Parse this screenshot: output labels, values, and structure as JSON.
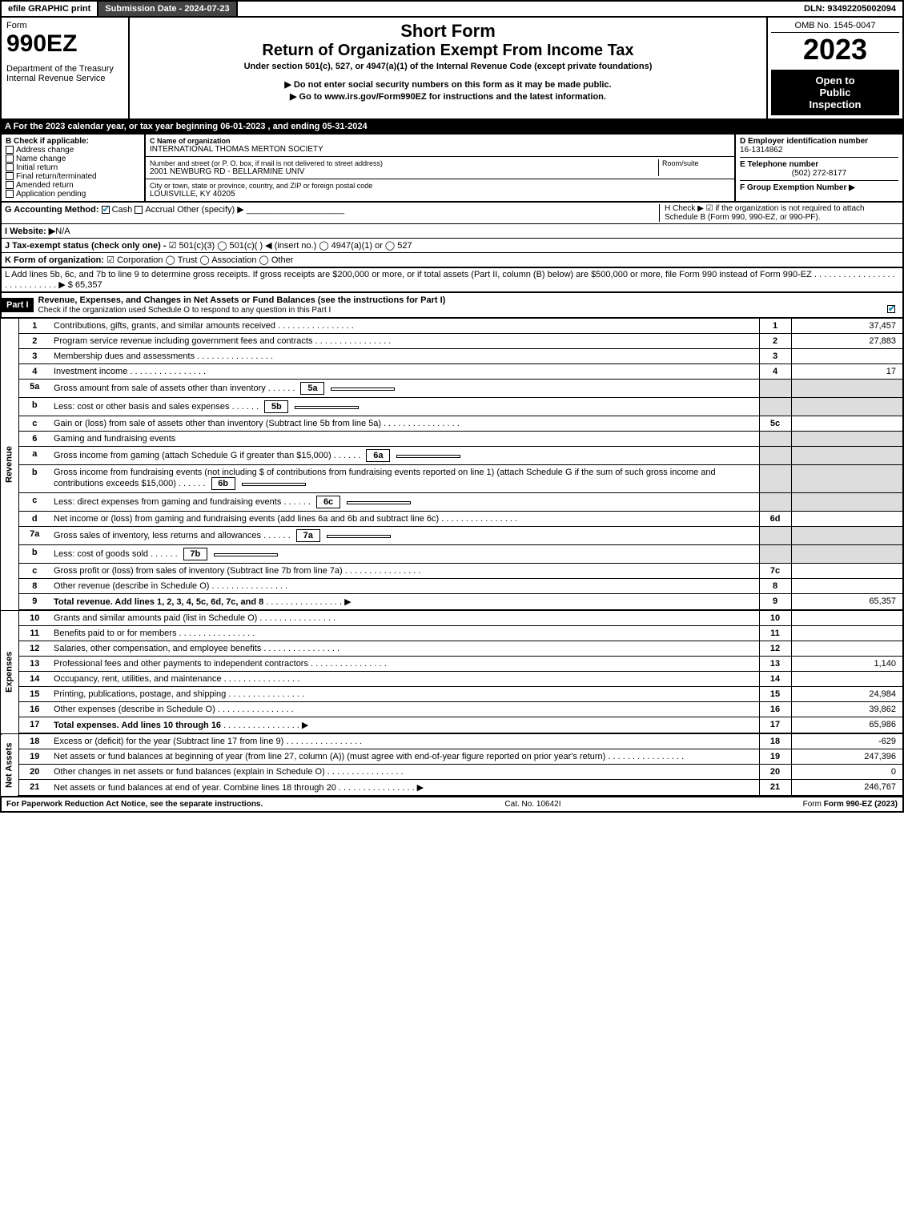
{
  "topbar": {
    "efile": "efile GRAPHIC print",
    "submission": "Submission Date - 2024-07-23",
    "dln": "DLN: 93492205002094"
  },
  "header": {
    "form_word": "Form",
    "form_no": "990EZ",
    "dept1": "Department of the Treasury",
    "dept2": "Internal Revenue Service",
    "title1": "Short Form",
    "title2": "Return of Organization Exempt From Income Tax",
    "subtitle": "Under section 501(c), 527, or 4947(a)(1) of the Internal Revenue Code (except private foundations)",
    "note1": "▶ Do not enter social security numbers on this form as it may be made public.",
    "note2": "▶ Go to www.irs.gov/Form990EZ for instructions and the latest information.",
    "omb": "OMB No. 1545-0047",
    "year": "2023",
    "open1": "Open to",
    "open2": "Public",
    "open3": "Inspection"
  },
  "line_a": "A  For the 2023 calendar year, or tax year beginning 06-01-2023 , and ending 05-31-2024",
  "b": {
    "label": "B  Check if applicable:",
    "opts": [
      "Address change",
      "Name change",
      "Initial return",
      "Final return/terminated",
      "Amended return",
      "Application pending"
    ]
  },
  "c": {
    "name_label": "C Name of organization",
    "name": "INTERNATIONAL THOMAS MERTON SOCIETY",
    "street_label": "Number and street (or P. O. box, if mail is not delivered to street address)",
    "room_label": "Room/suite",
    "street": "2001 NEWBURG RD - BELLARMINE UNIV",
    "city_label": "City or town, state or province, country, and ZIP or foreign postal code",
    "city": "LOUISVILLE, KY  40205"
  },
  "d": {
    "label": "D Employer identification number",
    "ein": "16-1314862",
    "e_label": "E Telephone number",
    "phone": "(502) 272-8177",
    "f_label": "F Group Exemption Number  ▶"
  },
  "g": {
    "label": "G Accounting Method:",
    "cash": "Cash",
    "accrual": "Accrual",
    "other": "Other (specify) ▶"
  },
  "h": {
    "text": "H  Check ▶ ☑ if the organization is not required to attach Schedule B (Form 990, 990-EZ, or 990-PF)."
  },
  "i": {
    "label": "I Website: ▶",
    "val": "N/A"
  },
  "j": {
    "label": "J Tax-exempt status (check only one) -",
    "opts": "☑ 501(c)(3)  ◯ 501(c)(  ) ◀ (insert no.)  ◯ 4947(a)(1) or  ◯ 527"
  },
  "k": {
    "label": "K Form of organization:",
    "opts": "☑ Corporation  ◯ Trust  ◯ Association  ◯ Other"
  },
  "l": {
    "text": "L Add lines 5b, 6c, and 7b to line 9 to determine gross receipts. If gross receipts are $200,000 or more, or if total assets (Part II, column (B) below) are $500,000 or more, file Form 990 instead of Form 990-EZ  .  .  .  .  .  .  .  .  .  .  .  .  .  .  .  .  .  .  .  .  .  .  .  .  .  .  .  .  ▶ $ 65,357"
  },
  "part1": {
    "tag": "Part I",
    "title": "Revenue, Expenses, and Changes in Net Assets or Fund Balances (see the instructions for Part I)",
    "note": "Check if the organization used Schedule O to respond to any question in this Part I"
  },
  "sides": {
    "rev": "Revenue",
    "exp": "Expenses",
    "net": "Net Assets"
  },
  "lines": [
    {
      "n": "1",
      "d": "Contributions, gifts, grants, and similar amounts received",
      "ln": "1",
      "amt": "37,457"
    },
    {
      "n": "2",
      "d": "Program service revenue including government fees and contracts",
      "ln": "2",
      "amt": "27,883"
    },
    {
      "n": "3",
      "d": "Membership dues and assessments",
      "ln": "3",
      "amt": ""
    },
    {
      "n": "4",
      "d": "Investment income",
      "ln": "4",
      "amt": "17"
    },
    {
      "n": "5a",
      "d": "Gross amount from sale of assets other than inventory",
      "inner": "5a",
      "shade": true
    },
    {
      "n": "b",
      "d": "Less: cost or other basis and sales expenses",
      "inner": "5b",
      "shade": true
    },
    {
      "n": "c",
      "d": "Gain or (loss) from sale of assets other than inventory (Subtract line 5b from line 5a)",
      "ln": "5c",
      "amt": ""
    },
    {
      "n": "6",
      "d": "Gaming and fundraising events",
      "shade": true
    },
    {
      "n": "a",
      "d": "Gross income from gaming (attach Schedule G if greater than $15,000)",
      "inner": "6a",
      "shade": true
    },
    {
      "n": "b",
      "d": "Gross income from fundraising events (not including $                    of contributions from fundraising events reported on line 1) (attach Schedule G if the sum of such gross income and contributions exceeds $15,000)",
      "inner": "6b",
      "shade": true
    },
    {
      "n": "c",
      "d": "Less: direct expenses from gaming and fundraising events",
      "inner": "6c",
      "shade": true
    },
    {
      "n": "d",
      "d": "Net income or (loss) from gaming and fundraising events (add lines 6a and 6b and subtract line 6c)",
      "ln": "6d",
      "amt": ""
    },
    {
      "n": "7a",
      "d": "Gross sales of inventory, less returns and allowances",
      "inner": "7a",
      "shade": true
    },
    {
      "n": "b",
      "d": "Less: cost of goods sold",
      "inner": "7b",
      "shade": true
    },
    {
      "n": "c",
      "d": "Gross profit or (loss) from sales of inventory (Subtract line 7b from line 7a)",
      "ln": "7c",
      "amt": ""
    },
    {
      "n": "8",
      "d": "Other revenue (describe in Schedule O)",
      "ln": "8",
      "amt": ""
    },
    {
      "n": "9",
      "d": "Total revenue. Add lines 1, 2, 3, 4, 5c, 6d, 7c, and 8",
      "ln": "9",
      "amt": "65,357",
      "bold": true,
      "arrow": true,
      "hb": true
    }
  ],
  "exp_lines": [
    {
      "n": "10",
      "d": "Grants and similar amounts paid (list in Schedule O)",
      "ln": "10",
      "amt": ""
    },
    {
      "n": "11",
      "d": "Benefits paid to or for members",
      "ln": "11",
      "amt": ""
    },
    {
      "n": "12",
      "d": "Salaries, other compensation, and employee benefits",
      "ln": "12",
      "amt": ""
    },
    {
      "n": "13",
      "d": "Professional fees and other payments to independent contractors",
      "ln": "13",
      "amt": "1,140"
    },
    {
      "n": "14",
      "d": "Occupancy, rent, utilities, and maintenance",
      "ln": "14",
      "amt": ""
    },
    {
      "n": "15",
      "d": "Printing, publications, postage, and shipping",
      "ln": "15",
      "amt": "24,984"
    },
    {
      "n": "16",
      "d": "Other expenses (describe in Schedule O)",
      "ln": "16",
      "amt": "39,862"
    },
    {
      "n": "17",
      "d": "Total expenses. Add lines 10 through 16",
      "ln": "17",
      "amt": "65,986",
      "bold": true,
      "arrow": true,
      "hb": true
    }
  ],
  "net_lines": [
    {
      "n": "18",
      "d": "Excess or (deficit) for the year (Subtract line 17 from line 9)",
      "ln": "18",
      "amt": "-629"
    },
    {
      "n": "19",
      "d": "Net assets or fund balances at beginning of year (from line 27, column (A)) (must agree with end-of-year figure reported on prior year's return)",
      "ln": "19",
      "amt": "247,396"
    },
    {
      "n": "20",
      "d": "Other changes in net assets or fund balances (explain in Schedule O)",
      "ln": "20",
      "amt": "0"
    },
    {
      "n": "21",
      "d": "Net assets or fund balances at end of year. Combine lines 18 through 20",
      "ln": "21",
      "amt": "246,767",
      "arrow": true,
      "hb": true
    }
  ],
  "footer": {
    "left": "For Paperwork Reduction Act Notice, see the separate instructions.",
    "mid": "Cat. No. 10642I",
    "right": "Form 990-EZ (2023)"
  }
}
